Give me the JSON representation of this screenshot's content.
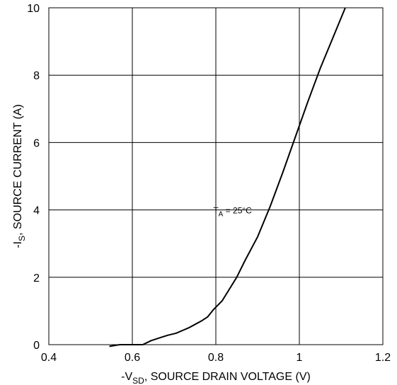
{
  "chart_data": {
    "type": "line",
    "xlabel": {
      "prefix": "-V",
      "sub": "SD",
      "suffix": ", SOURCE DRAIN VOLTAGE (V)"
    },
    "ylabel": {
      "prefix": "-I",
      "sub": "S",
      "suffix": ", SOURCE CURRENT (A)"
    },
    "xlim": [
      0.4,
      1.2
    ],
    "ylim": [
      0,
      10
    ],
    "xticks": [
      0.4,
      0.6,
      0.8,
      1.0,
      1.2
    ],
    "xtick_labels": [
      "0.4",
      "0.6",
      "0.8",
      "1",
      "1.2"
    ],
    "yticks": [
      0,
      2,
      4,
      6,
      8,
      10
    ],
    "ytick_labels": [
      "0",
      "2",
      "4",
      "6",
      "8",
      "10"
    ],
    "grid": true,
    "annotation": {
      "prefix": "T",
      "sub": "A",
      "suffix": " = 25°C",
      "x": 0.84,
      "y": 3.9
    },
    "series": [
      {
        "color": "#000000",
        "x": [
          0.545,
          0.57,
          0.6,
          0.625,
          0.645,
          0.665,
          0.685,
          0.705,
          0.72,
          0.735,
          0.75,
          0.765,
          0.78,
          0.795,
          0.815,
          0.83,
          0.85,
          0.87,
          0.9,
          0.93,
          0.96,
          0.99,
          1.02,
          1.05,
          1.08,
          1.11
        ],
        "y": [
          -0.05,
          0.0,
          0.0,
          0.0,
          0.12,
          0.2,
          0.28,
          0.34,
          0.42,
          0.5,
          0.6,
          0.7,
          0.82,
          1.05,
          1.3,
          1.6,
          2.0,
          2.5,
          3.2,
          4.1,
          5.1,
          6.15,
          7.2,
          8.2,
          9.1,
          10.0
        ]
      }
    ]
  }
}
